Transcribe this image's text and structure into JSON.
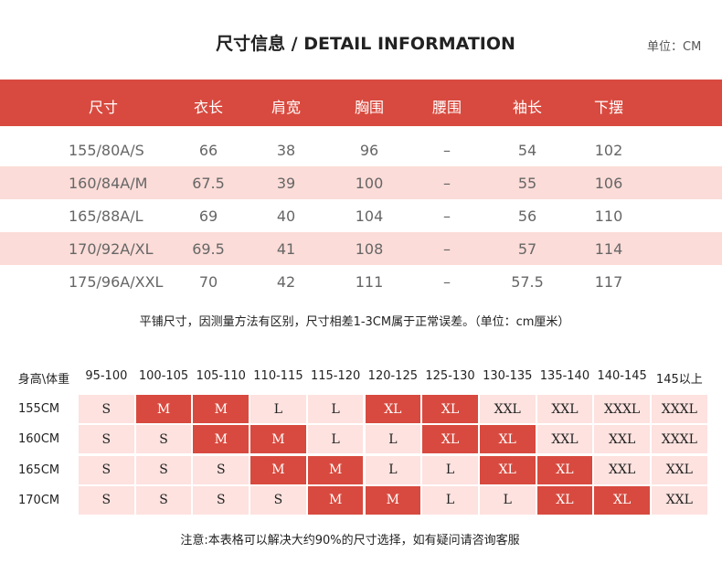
{
  "header": {
    "title": "尺寸信息 / DETAIL INFORMATION",
    "unit": "单位：CM"
  },
  "size_table": {
    "columns": [
      "尺寸",
      "衣长",
      "肩宽",
      "胸围",
      "腰围",
      "袖长",
      "下摆"
    ],
    "rows": [
      [
        "155/80A/S",
        "66",
        "38",
        "96",
        "–",
        "54",
        "102"
      ],
      [
        "160/84A/M",
        "67.5",
        "39",
        "100",
        "–",
        "55",
        "106"
      ],
      [
        "165/88A/L",
        "69",
        "40",
        "104",
        "–",
        "56",
        "110"
      ],
      [
        "170/92A/XL",
        "69.5",
        "41",
        "108",
        "–",
        "57",
        "114"
      ],
      [
        "175/96A/XXL",
        "70",
        "42",
        "111",
        "–",
        "57.5",
        "117"
      ]
    ]
  },
  "note": "平铺尺寸，因测量方法有区别，尺寸相差1-3CM属于正常误差。（单位：cm厘米）",
  "fit_table": {
    "columns": [
      "身高\\体重",
      "95-100",
      "100-105",
      "105-110",
      "110-115",
      "115-120",
      "120-125",
      "125-130",
      "130-135",
      "135-140",
      "140-145",
      "145以上"
    ],
    "rows": [
      {
        "height": "155CM",
        "sizes": [
          "S",
          "M",
          "M",
          "L",
          "L",
          "XL",
          "XL",
          "XXL",
          "XXL",
          "XXXL",
          "XXXL"
        ]
      },
      {
        "height": "160CM",
        "sizes": [
          "S",
          "S",
          "M",
          "M",
          "L",
          "L",
          "XL",
          "XL",
          "XXL",
          "XXL",
          "XXXL"
        ]
      },
      {
        "height": "165CM",
        "sizes": [
          "S",
          "S",
          "S",
          "M",
          "M",
          "L",
          "L",
          "XL",
          "XL",
          "XXL",
          "XXL"
        ]
      },
      {
        "height": "170CM",
        "sizes": [
          "S",
          "S",
          "S",
          "S",
          "M",
          "M",
          "L",
          "L",
          "XL",
          "XL",
          "XXL"
        ]
      }
    ]
  },
  "footer": "注意:本表格可以解决大约90%的尺寸选择，如有疑问请咨询客服"
}
